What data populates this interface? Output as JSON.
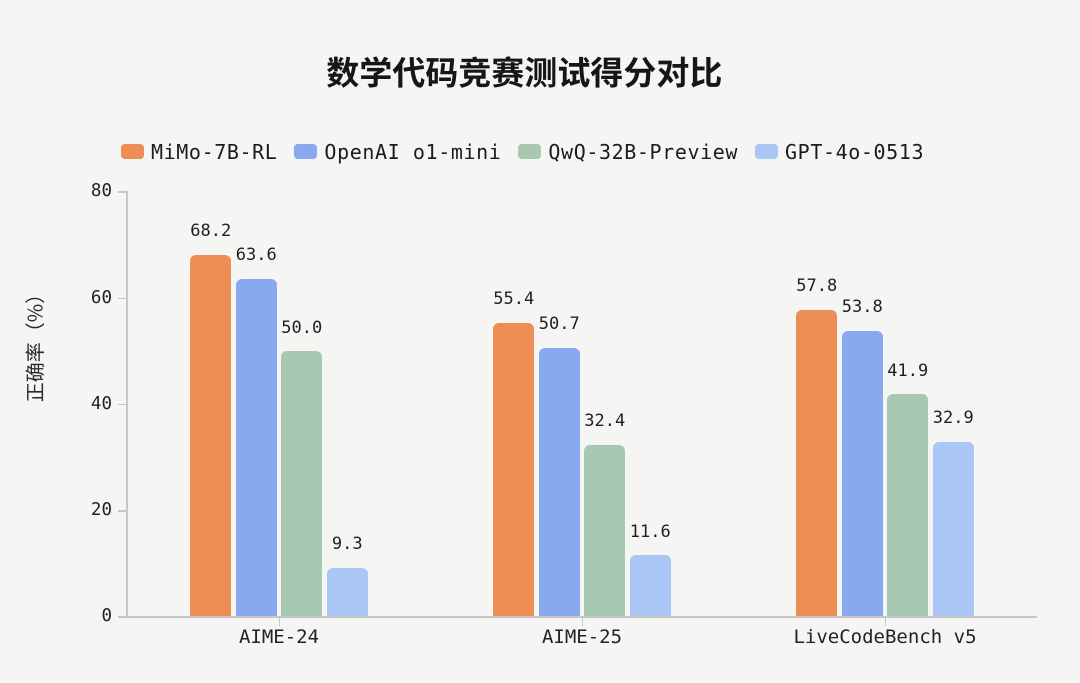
{
  "title": "数学代码竞赛测试得分对比",
  "chart_data": {
    "type": "bar",
    "title": "数学代码竞赛测试得分对比",
    "ylabel": "正确率（%）",
    "xlabel": "",
    "ylim": [
      0,
      80
    ],
    "yticks": [
      0,
      20,
      40,
      60,
      80
    ],
    "grid": false,
    "legend_position": "top-left",
    "value_labels": true,
    "categories": [
      "AIME-24",
      "AIME-25",
      "LiveCodeBench v5"
    ],
    "series": [
      {
        "name": "MiMo-7B-RL",
        "color": "#ee8d54",
        "values": [
          68.2,
          55.4,
          57.8
        ],
        "labels": [
          "68.2",
          "55.4",
          "57.8"
        ]
      },
      {
        "name": "OpenAI o1-mini",
        "color": "#88a8f0",
        "values": [
          63.6,
          50.7,
          53.8
        ],
        "labels": [
          "63.6",
          "50.7",
          "53.8"
        ]
      },
      {
        "name": "QwQ-32B-Preview",
        "color": "#a7c9b2",
        "values": [
          50.0,
          32.4,
          41.9
        ],
        "labels": [
          "50.0",
          "32.4",
          "41.9"
        ]
      },
      {
        "name": "GPT-4o-0513",
        "color": "#a9c6f5",
        "values": [
          9.3,
          11.6,
          32.9
        ],
        "labels": [
          "9.3",
          "11.6",
          "32.9"
        ]
      }
    ]
  },
  "colors": {
    "background": "#f5f5f3",
    "axis_line": "#c6c6c6",
    "tick_text": "#222222",
    "value_text": "#1f1f1f",
    "title_text": "#161616",
    "legend_text": "#1b1b1b"
  }
}
